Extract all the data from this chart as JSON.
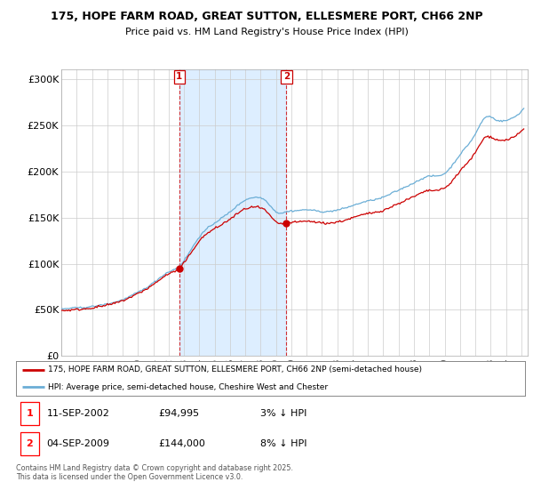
{
  "title1": "175, HOPE FARM ROAD, GREAT SUTTON, ELLESMERE PORT, CH66 2NP",
  "title2": "Price paid vs. HM Land Registry's House Price Index (HPI)",
  "ylim": [
    0,
    310000
  ],
  "yticks": [
    0,
    50000,
    100000,
    150000,
    200000,
    250000,
    300000
  ],
  "ytick_labels": [
    "£0",
    "£50K",
    "£100K",
    "£150K",
    "£200K",
    "£250K",
    "£300K"
  ],
  "hpi_color": "#6baed6",
  "price_color": "#cc0000",
  "shading_color": "#ddeeff",
  "background_color": "#ffffff",
  "grid_color": "#cccccc",
  "legend_line1": "175, HOPE FARM ROAD, GREAT SUTTON, ELLESMERE PORT, CH66 2NP (semi-detached house)",
  "legend_line2": "HPI: Average price, semi-detached house, Cheshire West and Chester",
  "footer": "Contains HM Land Registry data © Crown copyright and database right 2025.\nThis data is licensed under the Open Government Licence v3.0.",
  "purchase1_year": 2002,
  "purchase1_month": 9,
  "purchase1_day": 11,
  "purchase1_price": 94995,
  "purchase2_year": 2009,
  "purchase2_month": 9,
  "purchase2_day": 4,
  "purchase2_price": 144000,
  "ann1_date": "11-SEP-2002",
  "ann1_price": "£94,995",
  "ann1_pct": "3% ↓ HPI",
  "ann2_date": "04-SEP-2009",
  "ann2_price": "£144,000",
  "ann2_pct": "8% ↓ HPI"
}
